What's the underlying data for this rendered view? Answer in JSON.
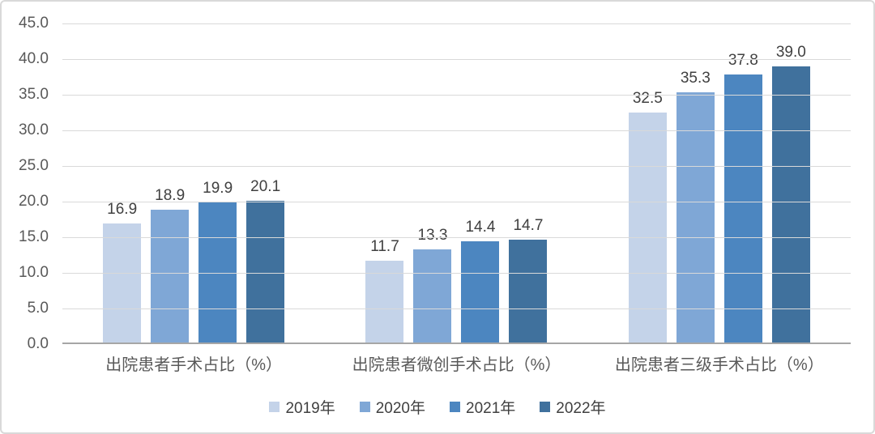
{
  "chart_data": {
    "type": "bar",
    "title": "",
    "categories": [
      "出院患者手术占比（%）",
      "出院患者微创手术占比（%）",
      "出院患者三级手术占比（%）"
    ],
    "series": [
      {
        "name": "2019年",
        "color": "#C4D3E9",
        "values": [
          16.9,
          11.7,
          32.5
        ]
      },
      {
        "name": "2020年",
        "color": "#7FA7D6",
        "values": [
          18.9,
          13.3,
          35.3
        ]
      },
      {
        "name": "2021年",
        "color": "#4C86C0",
        "values": [
          19.9,
          14.4,
          37.8
        ]
      },
      {
        "name": "2022年",
        "color": "#40719D",
        "values": [
          20.1,
          14.7,
          39.0
        ]
      }
    ],
    "ylim": [
      0,
      45
    ],
    "ytick_step": 5,
    "yticks": [
      "45.0",
      "40.0",
      "35.0",
      "30.0",
      "25.0",
      "20.0",
      "15.0",
      "10.0",
      "5.0",
      "0.0"
    ],
    "value_label_decimals": 1,
    "grid": true,
    "legend_position": "bottom"
  },
  "colors": {
    "grid": "#D9D9D9",
    "axis_line": "#A6A6A6",
    "tick_text": "#595959",
    "value_text": "#404040",
    "category_text": "#595959",
    "legend_text": "#404040",
    "background": "#FFFFFF",
    "frame_border": "#D9D9D9"
  }
}
